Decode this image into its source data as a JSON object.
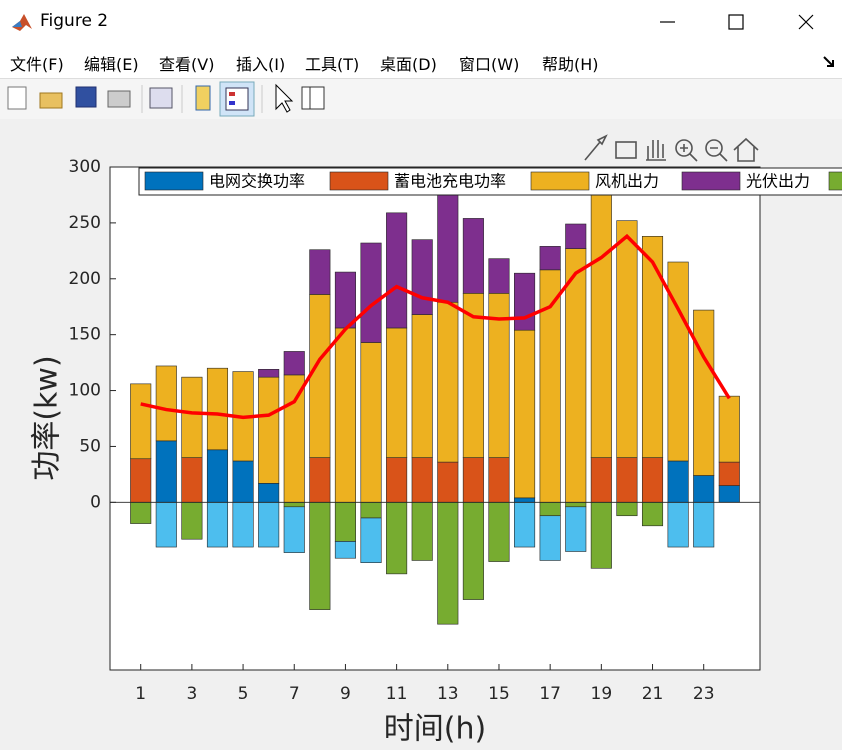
{
  "window": {
    "title": "Figure 2"
  },
  "menu": [
    "文件(F)",
    "编辑(E)",
    "查看(V)",
    "插入(I)",
    "工具(T)",
    "桌面(D)",
    "窗口(W)",
    "帮助(H)"
  ],
  "chart_data": {
    "type": "bar",
    "stacked": true,
    "xlabel": "时间(h)",
    "ylabel": "功率(kw)",
    "x": [
      1,
      2,
      3,
      4,
      5,
      6,
      7,
      8,
      9,
      10,
      11,
      12,
      13,
      14,
      15,
      16,
      17,
      18,
      19,
      20,
      21,
      22,
      23,
      24
    ],
    "xlim": [
      -0.2,
      25.2
    ],
    "xticks": [
      1,
      3,
      5,
      7,
      9,
      11,
      13,
      15,
      17,
      19,
      21,
      23
    ],
    "ylim": [
      -150,
      300
    ],
    "yticks": [
      0,
      50,
      100,
      150,
      200,
      250,
      300
    ],
    "series": [
      {
        "name": "电网交换功率",
        "color": "#0072BD",
        "values": [
          0,
          55,
          0,
          47,
          37,
          17,
          0,
          0,
          0,
          0,
          0,
          0,
          0,
          0,
          0,
          4,
          0,
          0,
          0,
          0,
          0,
          37,
          24,
          15
        ]
      },
      {
        "name": "蓄电池充电功率",
        "color": "#D95319",
        "values": [
          39,
          0,
          40,
          0,
          0,
          0,
          0,
          40,
          0,
          0,
          40,
          40,
          36,
          40,
          40,
          0,
          0,
          0,
          40,
          40,
          40,
          0,
          0,
          21
        ]
      },
      {
        "name": "风机出力",
        "color": "#EDB120",
        "values": [
          67,
          67,
          72,
          73,
          80,
          95,
          114,
          146,
          156,
          143,
          116,
          128,
          143,
          147,
          147,
          150,
          208,
          227,
          238,
          212,
          198,
          178,
          148,
          59
        ]
      },
      {
        "name": "光伏出力",
        "color": "#7E2F8E",
        "values": [
          0,
          0,
          0,
          0,
          0,
          7,
          21,
          40,
          50,
          89,
          103,
          67,
          99,
          67,
          31,
          51,
          21,
          22,
          0,
          0,
          0,
          0,
          0,
          0
        ]
      },
      {
        "color": "#77AC30",
        "values": [
          -19,
          0,
          -33,
          0,
          0,
          0,
          -4,
          -96,
          -35,
          -14,
          -64,
          -52,
          -109,
          -87,
          -53,
          0,
          -12,
          -4,
          -59,
          -12,
          -21,
          0,
          0,
          0
        ]
      },
      {
        "color": "#4DBEEE",
        "values": [
          0,
          -40,
          0,
          -40,
          -40,
          -40,
          -41,
          0,
          -15,
          -40,
          0,
          0,
          0,
          0,
          0,
          -40,
          -40,
          -40,
          0,
          0,
          0,
          -40,
          -40,
          0
        ]
      },
      {
        "type": "line",
        "color": "#FF0000",
        "values": [
          88,
          83,
          80,
          79,
          76,
          78,
          90,
          128,
          155,
          176,
          193,
          183,
          179,
          166,
          164,
          165,
          175,
          205,
          219,
          238,
          215,
          173,
          130,
          93
        ]
      }
    ]
  }
}
